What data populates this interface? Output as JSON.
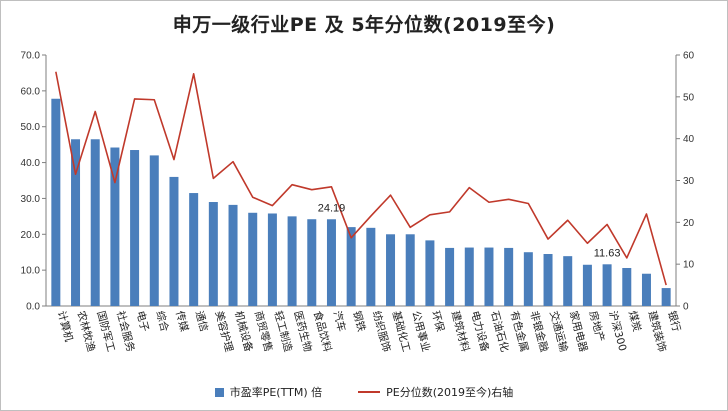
{
  "chart_data": {
    "type": "bar",
    "title": "申万一级行业PE 及 5年分位数(2019至今)",
    "categories": [
      "计算机",
      "农林牧渔",
      "国防军工",
      "社会服务",
      "电子",
      "综合",
      "传媒",
      "通信",
      "美容护理",
      "机械设备",
      "商贸零售",
      "轻工制造",
      "医药生物",
      "食品饮料",
      "汽车",
      "钢铁",
      "纺织服饰",
      "基础化工",
      "公用事业",
      "环保",
      "建筑材料",
      "电力设备",
      "石油石化",
      "有色金属",
      "非银金融",
      "交通运输",
      "家用电器",
      "房地产",
      "沪深300",
      "煤炭",
      "建筑装饰",
      "银行"
    ],
    "series": [
      {
        "name": "市盈率PE(TTM) 倍",
        "type": "bar",
        "axis": "left",
        "color": "#4a7ebb",
        "values": [
          57.8,
          46.5,
          46.5,
          44.2,
          43.5,
          42.0,
          36.0,
          31.5,
          29.0,
          28.2,
          26.0,
          25.8,
          25.0,
          24.2,
          24.19,
          22.0,
          21.8,
          20.0,
          20.0,
          18.3,
          16.2,
          16.3,
          16.3,
          16.2,
          15.0,
          14.5,
          13.9,
          11.5,
          11.63,
          10.6,
          9.0,
          5.0
        ]
      },
      {
        "name": "PE分位数(2019至今)右轴",
        "type": "line",
        "axis": "right",
        "color": "#c0392b",
        "values": [
          56.0,
          31.5,
          46.5,
          29.5,
          49.5,
          49.3,
          35.0,
          55.5,
          30.5,
          34.5,
          26.0,
          24.0,
          29.0,
          27.8,
          28.5,
          16.3,
          21.5,
          26.5,
          18.8,
          21.8,
          22.5,
          28.3,
          24.8,
          25.5,
          24.5,
          16.0,
          20.5,
          15.0,
          19.5,
          11.5,
          22.0,
          5.0
        ]
      }
    ],
    "y_left": {
      "min": 0,
      "max": 70,
      "ticks": [
        "0.0",
        "10.0",
        "20.0",
        "30.0",
        "40.0",
        "50.0",
        "60.0",
        "70.0"
      ]
    },
    "y_right": {
      "min": 0,
      "max": 60,
      "ticks": [
        "0",
        "10",
        "20",
        "30",
        "40",
        "50",
        "60"
      ]
    },
    "annotations": [
      {
        "category": "汽车",
        "text": "24.19"
      },
      {
        "category": "沪深300",
        "text": "11.63"
      }
    ],
    "legend": {
      "position": "bottom",
      "bar_label": "市盈率PE(TTM) 倍",
      "line_label": "PE分位数(2019至今)右轴"
    },
    "grid": false
  }
}
